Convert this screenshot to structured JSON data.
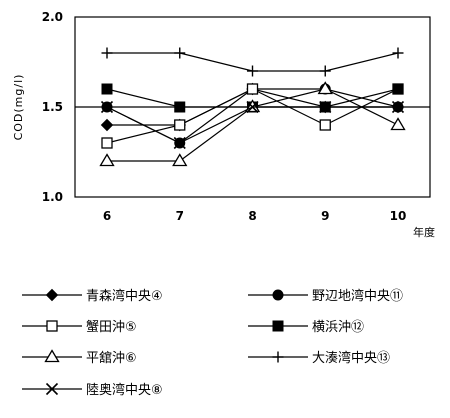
{
  "chart_data": {
    "type": "line",
    "ylabel": "COD(mg/l)",
    "xlabel": "年度",
    "ylim": [
      1.0,
      2.0
    ],
    "yticks": [
      "1.0",
      "1.5",
      "2.0"
    ],
    "categories": [
      "6",
      "7",
      "8",
      "9",
      "10"
    ],
    "reference_line": 1.5,
    "grid": false,
    "legend_position": "bottom",
    "series": [
      {
        "name": "青森湾中央④",
        "marker": "diamond-filled",
        "values": [
          1.4,
          1.4,
          1.6,
          1.5,
          1.5
        ]
      },
      {
        "name": "野辺地湾中央⑪",
        "marker": "circle-filled",
        "values": [
          1.5,
          1.3,
          1.6,
          1.6,
          1.5
        ]
      },
      {
        "name": "蟹田沖⑤",
        "marker": "square-open",
        "values": [
          1.3,
          1.4,
          1.6,
          1.4,
          1.6
        ]
      },
      {
        "name": "横浜沖⑫",
        "marker": "square-filled",
        "values": [
          1.6,
          1.5,
          1.5,
          1.5,
          1.6
        ]
      },
      {
        "name": "平舘沖⑥",
        "marker": "triangle-open",
        "values": [
          1.2,
          1.2,
          1.5,
          1.6,
          1.4
        ]
      },
      {
        "name": "大湊湾中央⑬",
        "marker": "plus",
        "values": [
          1.8,
          1.8,
          1.7,
          1.7,
          1.8
        ]
      },
      {
        "name": "陸奥湾中央⑧",
        "marker": "x",
        "values": [
          1.5,
          1.3,
          1.5,
          1.5,
          1.5
        ]
      }
    ]
  }
}
